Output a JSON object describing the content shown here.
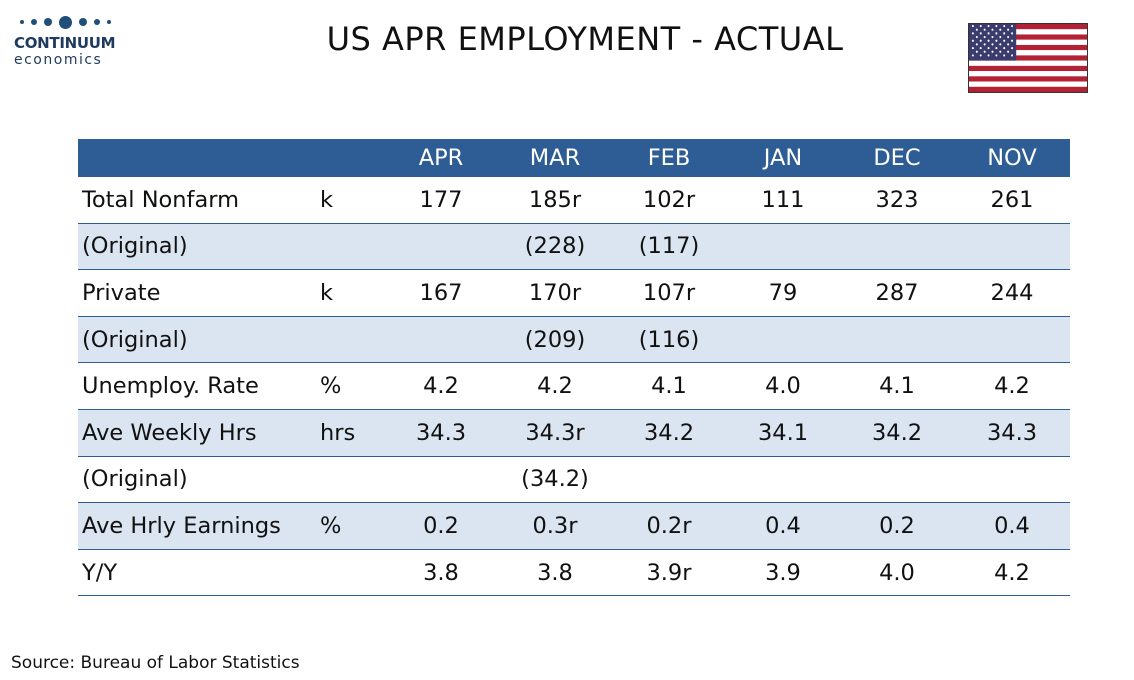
{
  "logo": {
    "name": "CONTINUUM",
    "sub": "economics"
  },
  "title": "US APR EMPLOYMENT - ACTUAL",
  "flag": {
    "icon": "us-flag-icon",
    "colors": {
      "blue": "#3c3b6e",
      "red": "#b22234",
      "white": "#ffffff"
    }
  },
  "table": {
    "headers": [
      "",
      "",
      "APR",
      "MAR",
      "FEB",
      "JAN",
      "DEC",
      "NOV"
    ],
    "rows": [
      {
        "label": "Total Nonfarm",
        "unit": "k",
        "values": [
          "177",
          "185r",
          "102r",
          "111",
          "323",
          "261"
        ],
        "shaded": false
      },
      {
        "label": "(Original)",
        "unit": "",
        "values": [
          "",
          "(228)",
          "(117)",
          "",
          "",
          ""
        ],
        "shaded": true
      },
      {
        "label": "Private",
        "unit": "k",
        "values": [
          "167",
          "170r",
          "107r",
          "79",
          "287",
          "244"
        ],
        "shaded": false
      },
      {
        "label": "(Original)",
        "unit": "",
        "values": [
          "",
          "(209)",
          "(116)",
          "",
          "",
          ""
        ],
        "shaded": true
      },
      {
        "label": "Unemploy. Rate",
        "unit": "%",
        "values": [
          "4.2",
          "4.2",
          "4.1",
          "4.0",
          "4.1",
          "4.2"
        ],
        "shaded": false
      },
      {
        "label": "Ave Weekly Hrs",
        "unit": "hrs",
        "values": [
          "34.3",
          "34.3r",
          "34.2",
          "34.1",
          "34.2",
          "34.3"
        ],
        "shaded": true
      },
      {
        "label": "(Original)",
        "unit": "",
        "values": [
          "",
          "(34.2)",
          "",
          "",
          "",
          ""
        ],
        "shaded": false
      },
      {
        "label": "Ave Hrly Earnings",
        "unit": "%",
        "values": [
          "0.2",
          "0.3r",
          "0.2r",
          "0.4",
          "0.2",
          "0.4"
        ],
        "shaded": true
      },
      {
        "label": "Y/Y",
        "unit": "",
        "values": [
          "3.8",
          "3.8",
          "3.9r",
          "3.9",
          "4.0",
          "4.2"
        ],
        "shaded": false
      }
    ]
  },
  "source": "Source: Bureau of Labor Statistics",
  "colors": {
    "header_bg": "#2e5c94",
    "shade": "#dbe5f1",
    "logo": "#1f3a5f"
  }
}
